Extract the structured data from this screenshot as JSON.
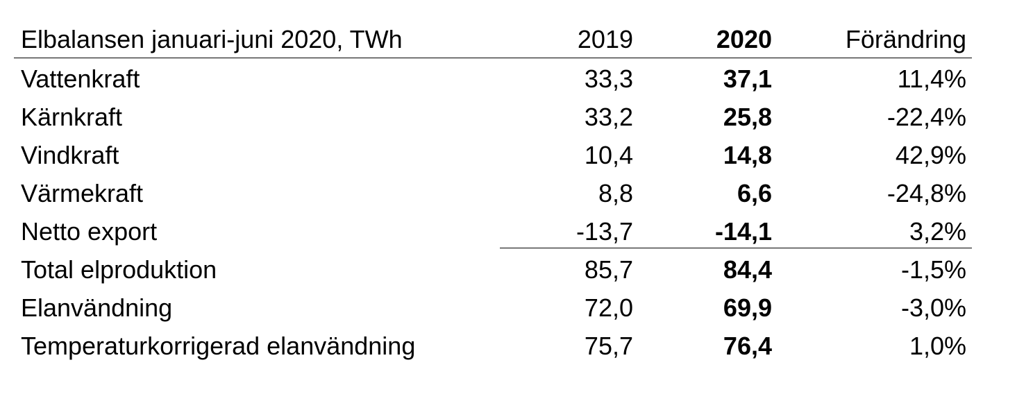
{
  "table": {
    "header": {
      "title": "Elbalansen januari-juni 2020, TWh",
      "col_2019": "2019",
      "col_2020": "2020",
      "col_change": "Förändring"
    },
    "rows": [
      {
        "label": "Vattenkraft",
        "v2019": "33,3",
        "v2020": "37,1",
        "change": "11,4%"
      },
      {
        "label": "Kärnkraft",
        "v2019": "33,2",
        "v2020": "25,8",
        "change": "-22,4%"
      },
      {
        "label": "Vindkraft",
        "v2019": "10,4",
        "v2020": "14,8",
        "change": "42,9%"
      },
      {
        "label": "Värmekraft",
        "v2019": "8,8",
        "v2020": "6,6",
        "change": "-24,8%"
      },
      {
        "label": "Netto export",
        "v2019": "-13,7",
        "v2020": "-14,1",
        "change": "3,2%"
      },
      {
        "label": "Total elproduktion",
        "v2019": "85,7",
        "v2020": "84,4",
        "change": "-1,5%"
      },
      {
        "label": "Elanvändning",
        "v2019": "72,0",
        "v2020": "69,9",
        "change": "-3,0%"
      },
      {
        "label": "Temperaturkorrigerad elanvändning",
        "v2019": "75,7",
        "v2020": "76,4",
        "change": "1,0%"
      }
    ]
  }
}
